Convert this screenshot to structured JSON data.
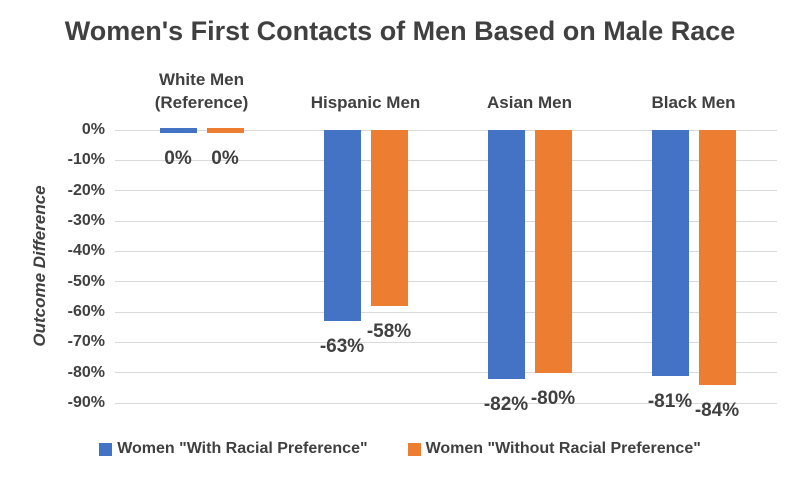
{
  "chart_data": {
    "type": "bar",
    "title": "Women's First Contacts of Men Based on Male Race",
    "xlabel": "",
    "ylabel": "Outcome Difference",
    "ylim": [
      -90,
      0
    ],
    "ytick_labels": [
      "0%",
      "-10%",
      "-20%",
      "-30%",
      "-40%",
      "-50%",
      "-60%",
      "-70%",
      "-80%",
      "-90%"
    ],
    "categories": [
      "White Men (Reference)",
      "Hispanic Men",
      "Asian Men",
      "Black Men"
    ],
    "category_label_lines": [
      [
        "White Men",
        "(Reference)"
      ],
      [
        "Hispanic Men"
      ],
      [
        "Asian Men"
      ],
      [
        "Black Men"
      ]
    ],
    "series": [
      {
        "name": "Women \"With Racial Preference\"",
        "color": "#4472C4",
        "values": [
          0,
          -63,
          -82,
          -81
        ],
        "data_labels": [
          "0%",
          "-63%",
          "-82%",
          "-81%"
        ]
      },
      {
        "name": "Women \"Without Racial Preference\"",
        "color": "#ED7D31",
        "values": [
          0,
          -58,
          -80,
          -84
        ],
        "data_labels": [
          "0%",
          "-58%",
          "-80%",
          "-84%"
        ]
      }
    ],
    "legend_position": "bottom",
    "grid": true,
    "gridline_color": "#D9D9D9",
    "text_color": "#404040",
    "background": "#FFFFFF"
  }
}
